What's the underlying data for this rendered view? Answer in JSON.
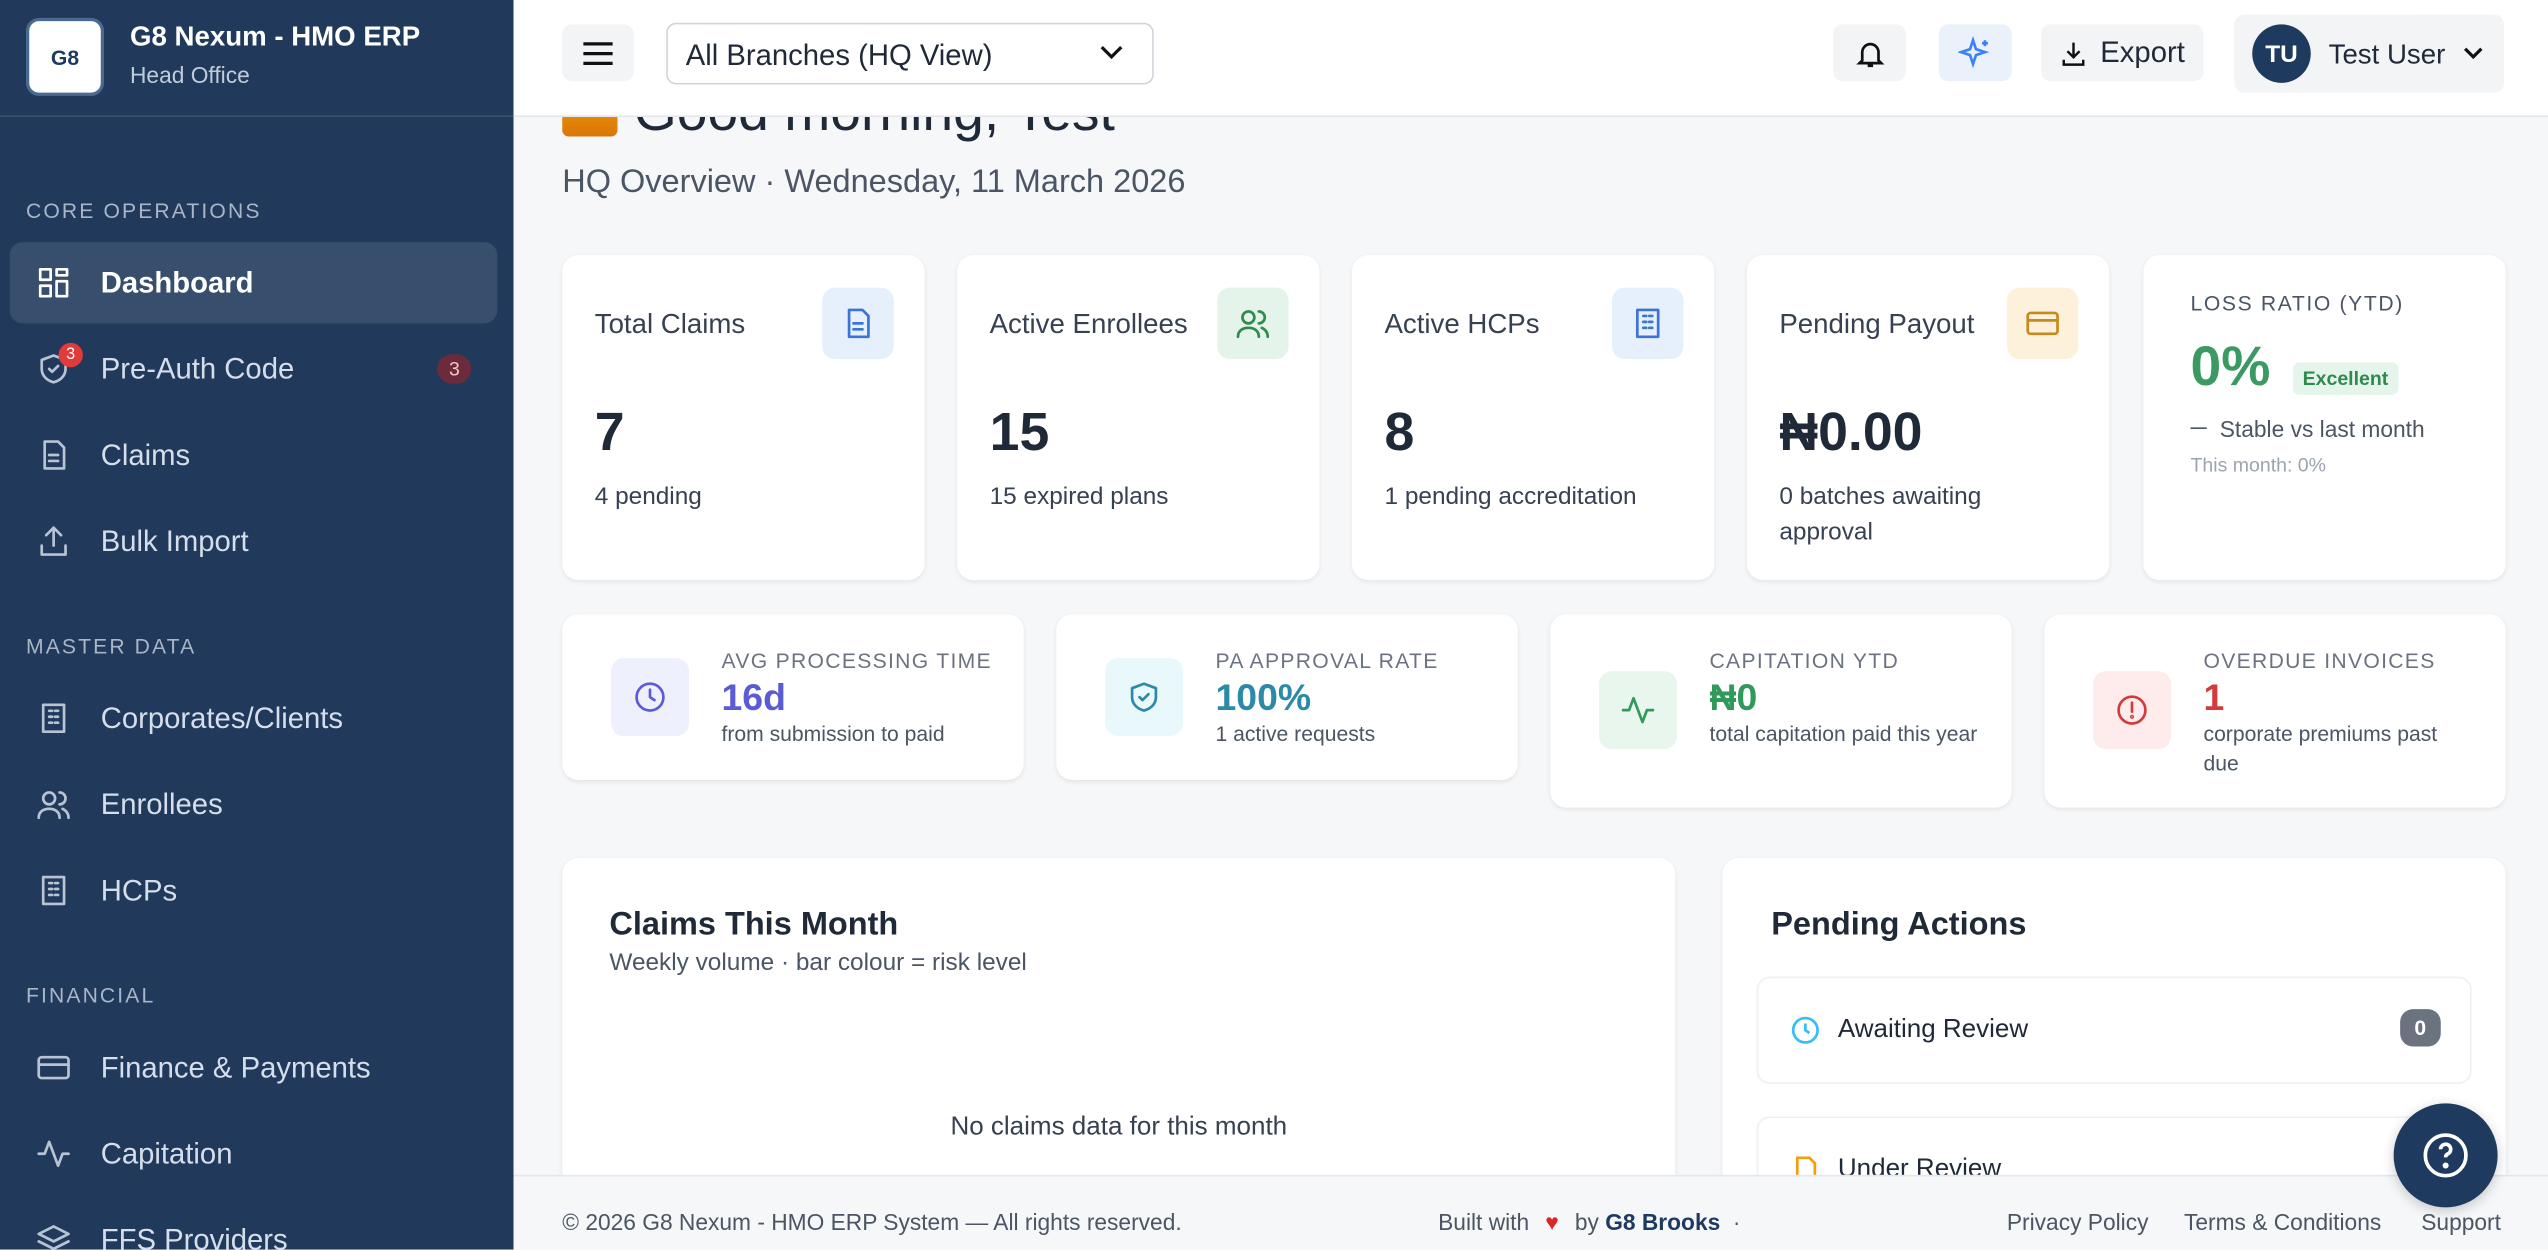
{
  "brand": {
    "logo_text": "G8",
    "name": "G8 Nexum - HMO ERP",
    "subtitle": "Head Office"
  },
  "sidebar": {
    "sections": [
      {
        "title": "CORE OPERATIONS",
        "items": [
          {
            "label": "Dashboard"
          },
          {
            "label": "Pre-Auth Code",
            "badge": "3"
          },
          {
            "label": "Claims"
          },
          {
            "label": "Bulk Import"
          }
        ]
      },
      {
        "title": "MASTER DATA",
        "items": [
          {
            "label": "Corporates/Clients"
          },
          {
            "label": "Enrollees"
          },
          {
            "label": "HCPs"
          }
        ]
      },
      {
        "title": "FINANCIAL",
        "items": [
          {
            "label": "Finance & Payments"
          },
          {
            "label": "Capitation"
          },
          {
            "label": "FFS Providers"
          }
        ]
      }
    ]
  },
  "topbar": {
    "branch": "All Branches (HQ View)",
    "export": "Export",
    "user_initials": "TU",
    "user_name": "Test User"
  },
  "greeting": {
    "title": "Good morning, Test",
    "subtitle": "HQ Overview · Wednesday, 11 March 2026"
  },
  "stats": [
    {
      "label": "Total Claims",
      "value": "7",
      "note": "4 pending"
    },
    {
      "label": "Active Enrollees",
      "value": "15",
      "note": "15 expired plans"
    },
    {
      "label": "Active HCPs",
      "value": "8",
      "note": "1 pending accreditation"
    },
    {
      "label": "Pending Payout",
      "value": "₦0.00",
      "note": "0 batches awaiting approval"
    }
  ],
  "loss_ratio": {
    "label": "LOSS RATIO (YTD)",
    "value": "0%",
    "status": "Excellent",
    "trend": "Stable vs last month",
    "month": "This month: 0%"
  },
  "metrics": [
    {
      "label": "AVG PROCESSING TIME",
      "value": "16d",
      "note": "from submission to paid"
    },
    {
      "label": "PA APPROVAL RATE",
      "value": "100%",
      "note": "1 active requests"
    },
    {
      "label": "CAPITATION YTD",
      "value": "₦0",
      "note": "total capitation paid this year"
    },
    {
      "label": "OVERDUE INVOICES",
      "value": "1",
      "note": "corporate premiums past due"
    }
  ],
  "claims_panel": {
    "title": "Claims This Month",
    "subtitle": "Weekly volume · bar colour = risk level",
    "empty": "No claims data for this month"
  },
  "pending_actions": {
    "title": "Pending Actions",
    "items": [
      {
        "label": "Awaiting Review",
        "count": "0"
      },
      {
        "label": "Under Review"
      }
    ]
  },
  "footer": {
    "copyright": "© 2026 G8 Nexum - HMO ERP System — All rights reserved.",
    "built_with": "Built with",
    "by": "by",
    "author": "G8 Brooks",
    "links": [
      "Privacy Policy",
      "Terms & Conditions",
      "Support"
    ]
  }
}
